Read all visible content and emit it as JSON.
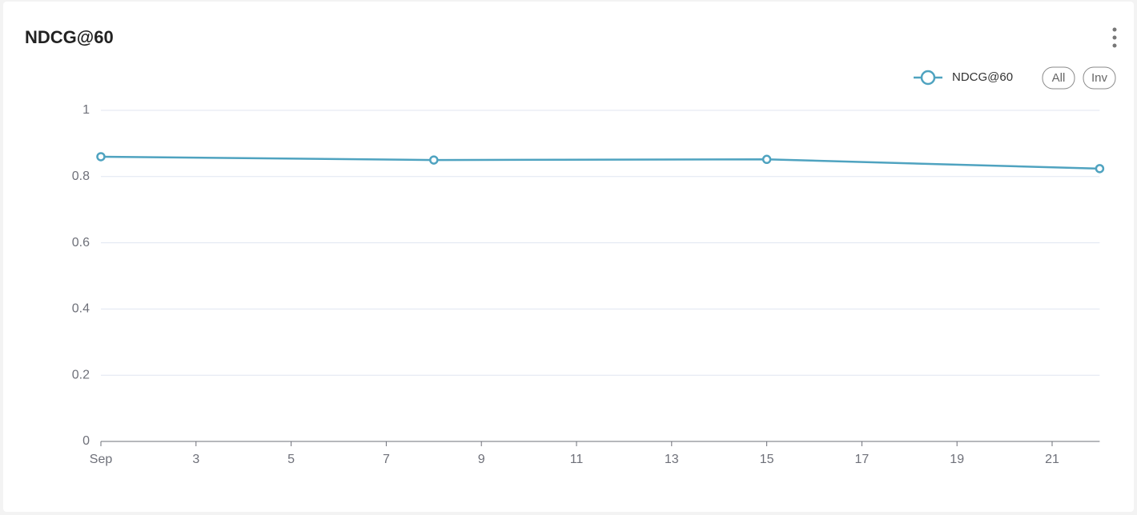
{
  "chart_data": {
    "type": "line",
    "title": "NDCG@60",
    "x": [
      1,
      8,
      15,
      22
    ],
    "series": [
      {
        "name": "NDCG@60",
        "color": "#4fa3c0",
        "values": [
          0.86,
          0.85,
          0.852,
          0.824
        ]
      }
    ],
    "xlim": [
      1,
      22
    ],
    "xticks": [
      {
        "value": 1,
        "label": "Sep"
      },
      3,
      5,
      7,
      9,
      11,
      13,
      15,
      17,
      19,
      21
    ],
    "ylim": [
      0,
      1
    ],
    "yticks": [
      0,
      0.2,
      0.4,
      0.6,
      0.8,
      1
    ],
    "grid": true,
    "legend": "top-right"
  },
  "controls": [
    "All",
    "Inv"
  ]
}
